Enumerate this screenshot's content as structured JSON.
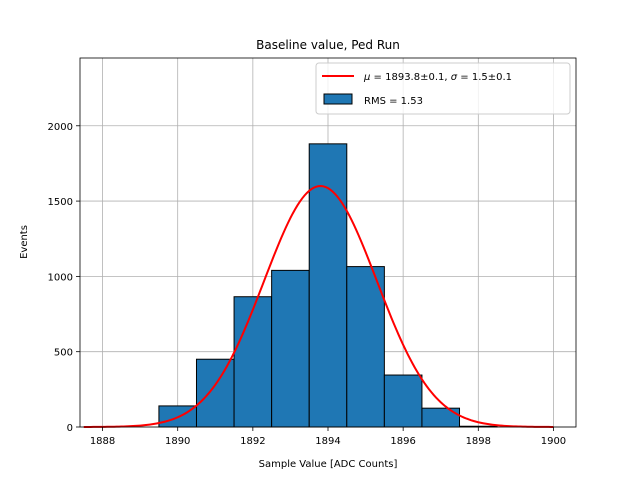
{
  "chart_data": {
    "type": "bar",
    "title": "Baseline value, Ped Run",
    "xlabel": "Sample Value [ADC Counts]",
    "ylabel": "Events",
    "xlim": [
      1887.4,
      1900.6
    ],
    "ylim": [
      0,
      2450
    ],
    "xticks": [
      1888,
      1890,
      1892,
      1894,
      1896,
      1898,
      1900
    ],
    "yticks": [
      0,
      500,
      1000,
      1500,
      2000
    ],
    "grid": true,
    "histogram": {
      "name": "RMS = 1.53",
      "color": "#1f77b4",
      "bins": [
        {
          "x0": 1889.5,
          "x1": 1890.5,
          "value": 140
        },
        {
          "x0": 1890.5,
          "x1": 1891.5,
          "value": 450
        },
        {
          "x0": 1891.5,
          "x1": 1892.5,
          "value": 865
        },
        {
          "x0": 1892.5,
          "x1": 1893.5,
          "value": 1040
        },
        {
          "x0": 1893.5,
          "x1": 1894.5,
          "value": 1880
        },
        {
          "x0": 1894.5,
          "x1": 1895.5,
          "value": 1065
        },
        {
          "x0": 1895.5,
          "x1": 1896.5,
          "value": 345
        },
        {
          "x0": 1896.5,
          "x1": 1897.5,
          "value": 125
        },
        {
          "x0": 1897.5,
          "x1": 1898.5,
          "value": 5
        }
      ]
    },
    "fit": {
      "name": "μ = 1893.8±0.1, σ = 1.5±0.1",
      "color": "#ff0000",
      "type": "gaussian",
      "mu": 1893.8,
      "sigma": 1.5,
      "amplitude": 1600,
      "x_range": [
        1887.5,
        1900
      ]
    },
    "legend": {
      "placement": "top-right",
      "entries": [
        {
          "label_prefix": "μ",
          "label_mid": " = 1893.8±0.1, ",
          "label_sigma": "σ",
          "label_suffix": " = 1.5±0.1"
        },
        {
          "label": "RMS = 1.53"
        }
      ]
    }
  }
}
